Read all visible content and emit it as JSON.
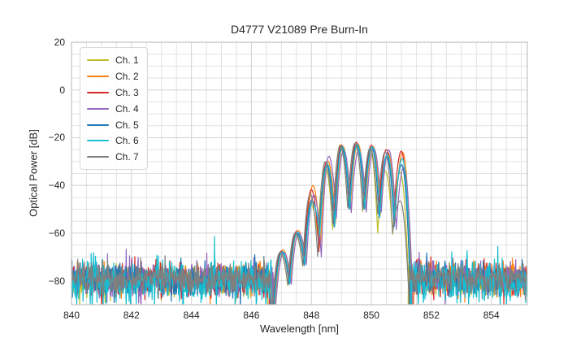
{
  "figure": {
    "title": "D4777 V21089 Pre Burn-In",
    "xlabel": "Wavelength [nm]",
    "ylabel": "Optical Power [dB]"
  },
  "axes": {
    "xlim": [
      840,
      855.2
    ],
    "ylim": [
      -90,
      20
    ],
    "x_ticks": {
      "values": [
        840,
        842,
        844,
        846,
        848,
        850,
        852,
        854
      ],
      "labels": [
        "840",
        "842",
        "844",
        "846",
        "848",
        "850",
        "852",
        "854"
      ]
    },
    "y_ticks": {
      "values": [
        20,
        0,
        -20,
        -40,
        -60,
        -80
      ],
      "labels": [
        "20",
        "0",
        "−20",
        "−40",
        "−60",
        "−80"
      ]
    },
    "x_minor_step": 0.5,
    "y_minor_step": 5,
    "grid_major_color": "#d2d2d2",
    "grid_minor_color": "#e2e2e2",
    "spine_color": "#c0c0c0",
    "background": "#ffffff",
    "text_color": "#262626"
  },
  "legend": {
    "items": [
      {
        "label": "Ch. 1",
        "color": "#bcbd22"
      },
      {
        "label": "Ch. 2",
        "color": "#ff7f0e"
      },
      {
        "label": "Ch. 3",
        "color": "#d62728"
      },
      {
        "label": "Ch. 4",
        "color": "#9467bd"
      },
      {
        "label": "Ch. 5",
        "color": "#1f77b4"
      },
      {
        "label": "Ch. 6",
        "color": "#17becf"
      },
      {
        "label": "Ch. 7",
        "color": "#7f7f7f"
      }
    ]
  },
  "chart_data": {
    "type": "line",
    "title": "D4777 V21089 Pre Burn-In",
    "xlabel": "Wavelength [nm]",
    "ylabel": "Optical Power [dB]",
    "xlim": [
      840,
      855.2
    ],
    "ylim": [
      -90,
      20
    ],
    "grid": "both",
    "legend_position": "upper left",
    "noise_floor_dB": -79.5,
    "mode_spacing_nm": 0.5,
    "lobe_centers_nm": [
      847.0,
      847.5,
      848.0,
      848.5,
      849.0,
      849.5,
      850.0,
      850.5,
      851.0
    ],
    "series": [
      {
        "name": "Ch. 1",
        "color": "#bcbd22",
        "offset_nm": -0.04,
        "lobe_peaks_dB": [
          -68.5,
          -60.5,
          -47.5,
          -32.5,
          -23.0,
          -22.4,
          -25.0,
          -34.0,
          -34.5
        ],
        "noise_mean_dB": -79.8,
        "noise_sigma_dB": 3.2,
        "noise_left_end_nm": 846.52,
        "noise_right_start_nm": 851.24,
        "seed": 3
      },
      {
        "name": "Ch. 2",
        "color": "#ff7f0e",
        "offset_nm": 0.05,
        "lobe_peaks_dB": [
          -67.0,
          -58.8,
          -40.0,
          -29.8,
          -23.6,
          -22.6,
          -23.6,
          -26.3,
          -26.2
        ],
        "noise_mean_dB": -79.3,
        "noise_sigma_dB": 3.3,
        "noise_left_end_nm": 846.6,
        "noise_right_start_nm": 851.42,
        "seed": 17
      },
      {
        "name": "Ch. 3",
        "color": "#d62728",
        "offset_nm": 0.0,
        "lobe_peaks_dB": [
          -67.5,
          -59.3,
          -41.8,
          -30.3,
          -23.1,
          -21.9,
          -23.1,
          -25.0,
          -25.6
        ],
        "noise_mean_dB": -79.6,
        "noise_sigma_dB": 3.3,
        "noise_left_end_nm": 846.56,
        "noise_right_start_nm": 851.28,
        "seed": 29
      },
      {
        "name": "Ch. 4",
        "color": "#9467bd",
        "offset_nm": 0.08,
        "lobe_peaks_dB": [
          -68.0,
          -59.8,
          -44.0,
          -27.8,
          -25.4,
          -25.2,
          -24.6,
          -25.2,
          -32.5
        ],
        "noise_mean_dB": -79.2,
        "noise_sigma_dB": 3.8,
        "noise_left_end_nm": 846.74,
        "noise_right_start_nm": 851.34,
        "seed": 41
      },
      {
        "name": "Ch. 5",
        "color": "#1f77b4",
        "offset_nm": 0.01,
        "lobe_peaks_dB": [
          -68.0,
          -60.2,
          -46.3,
          -31.5,
          -24.0,
          -23.0,
          -24.0,
          -27.6,
          -31.3
        ],
        "noise_mean_dB": -79.4,
        "noise_sigma_dB": 3.4,
        "noise_left_end_nm": 846.62,
        "noise_right_start_nm": 851.3,
        "seed": 53
      },
      {
        "name": "Ch. 6",
        "color": "#17becf",
        "offset_nm": 0.03,
        "lobe_peaks_dB": [
          -67.8,
          -59.6,
          -47.3,
          -31.0,
          -23.8,
          -22.8,
          -23.8,
          -27.0,
          -28.8
        ],
        "noise_mean_dB": -80.3,
        "noise_sigma_dB": 4.6,
        "noise_left_end_nm": 846.68,
        "noise_right_start_nm": 851.32,
        "seed": 67
      },
      {
        "name": "Ch. 7",
        "color": "#7f7f7f",
        "offset_nm": -0.04,
        "lobe_peaks_dB": [
          -68.0,
          -60.0,
          -43.7,
          -30.0,
          -23.4,
          -22.3,
          -24.3,
          -26.0,
          -46.5
        ],
        "noise_mean_dB": -79.0,
        "noise_sigma_dB": 3.1,
        "noise_left_end_nm": 846.64,
        "noise_right_start_nm": 851.26,
        "seed": 79
      }
    ]
  }
}
